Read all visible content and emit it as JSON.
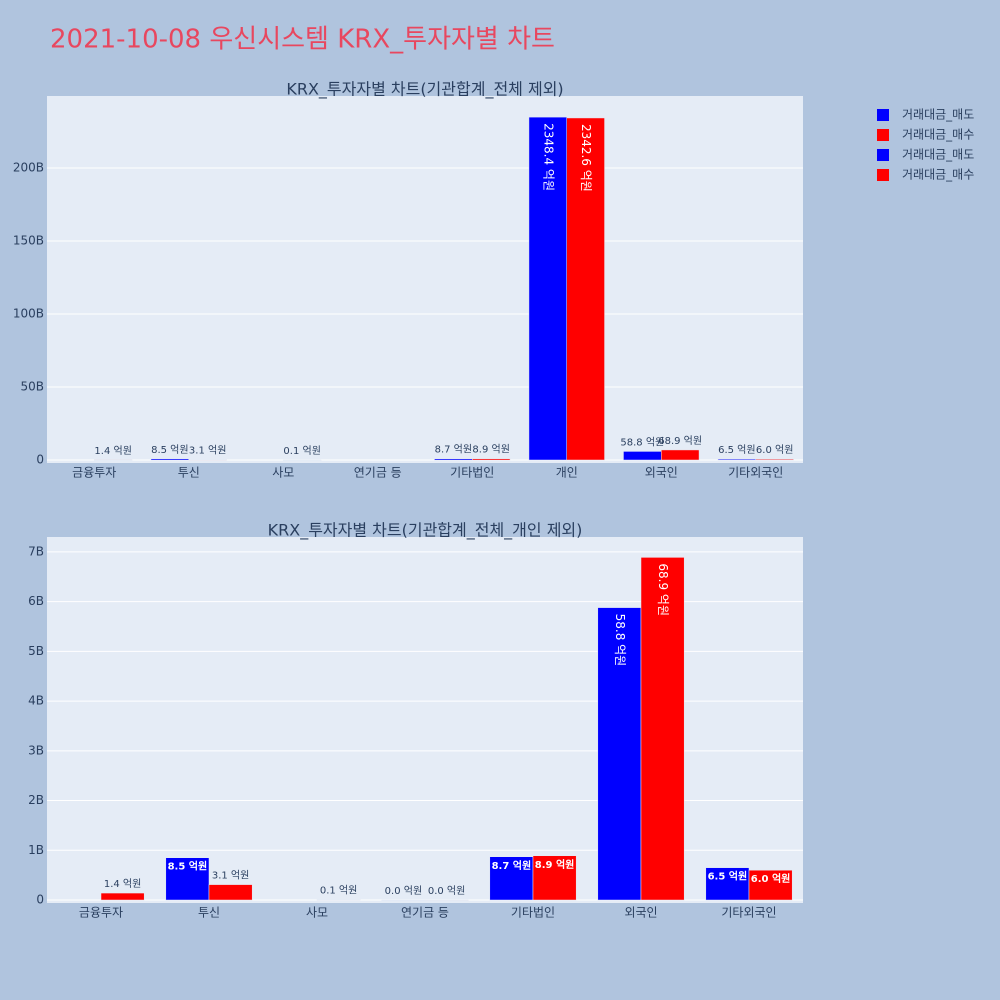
{
  "title": "2021-10-08 우신시스템 KRX_투자자별 차트",
  "chart_data": [
    {
      "type": "bar",
      "title": "KRX_투자자별 차트(기관합계_전체 제외)",
      "categories": [
        "금융투자",
        "투신",
        "사모",
        "연기금 등",
        "기타법인",
        "개인",
        "외국인",
        "기타외국인"
      ],
      "series": [
        {
          "name": "거래대금_매도",
          "color": "#0000ff",
          "values": [
            null,
            0.85,
            null,
            null,
            0.87,
            234.84,
            5.88,
            0.65
          ],
          "value_labels": [
            null,
            "8.5 억원",
            null,
            null,
            "8.7 억원",
            "2348.4 억원",
            "58.8 억원",
            "6.5 억원"
          ]
        },
        {
          "name": "거래대금_매수",
          "color": "#ff0000",
          "values": [
            0.14,
            0.31,
            0.01,
            null,
            0.89,
            234.26,
            6.89,
            0.6
          ],
          "value_labels": [
            "1.4 억원",
            "3.1 억원",
            "0.1 억원",
            null,
            "8.9 억원",
            "2342.6 억원",
            "68.9 억원",
            "6.0 억원"
          ]
        }
      ],
      "ylim": [
        -2.05,
        249.3
      ],
      "yticks": [
        0,
        {
          "value": 50,
          "label": "50B"
        },
        {
          "value": 100,
          "label": "100B"
        },
        {
          "value": 150,
          "label": "150B"
        },
        {
          "value": 200,
          "label": "200B"
        }
      ],
      "grid": true
    },
    {
      "type": "bar",
      "title": "KRX_투자자별 차트(기관합계_전체_개인 제외)",
      "categories": [
        "금융투자",
        "투신",
        "사모",
        "연기금 등",
        "기타법인",
        "외국인",
        "기타외국인"
      ],
      "series": [
        {
          "name": "거래대금_매도",
          "color": "#0000ff",
          "values": [
            null,
            0.85,
            null,
            0.0,
            0.87,
            5.88,
            0.65
          ],
          "value_labels": [
            null,
            "8.5 억원",
            null,
            "0.0 억원",
            "8.7 억원",
            "58.8 억원",
            "6.5 억원"
          ]
        },
        {
          "name": "거래대금_매수",
          "color": "#ff0000",
          "values": [
            0.14,
            0.31,
            0.01,
            0.0,
            0.89,
            6.89,
            0.6
          ],
          "value_labels": [
            "1.4 억원",
            "3.1 억원",
            "0.1 억원",
            "0.0 억원",
            "8.9 억원",
            "68.9 억원",
            "6.0 억원"
          ]
        }
      ],
      "ylim": [
        -0.06,
        7.3
      ],
      "yticks": [
        0,
        {
          "value": 1,
          "label": "1B"
        },
        {
          "value": 2,
          "label": "2B"
        },
        {
          "value": 3,
          "label": "3B"
        },
        {
          "value": 4,
          "label": "4B"
        },
        {
          "value": 5,
          "label": "5B"
        },
        {
          "value": 6,
          "label": "6B"
        },
        {
          "value": 7,
          "label": "7B"
        }
      ],
      "grid": true
    }
  ]
}
